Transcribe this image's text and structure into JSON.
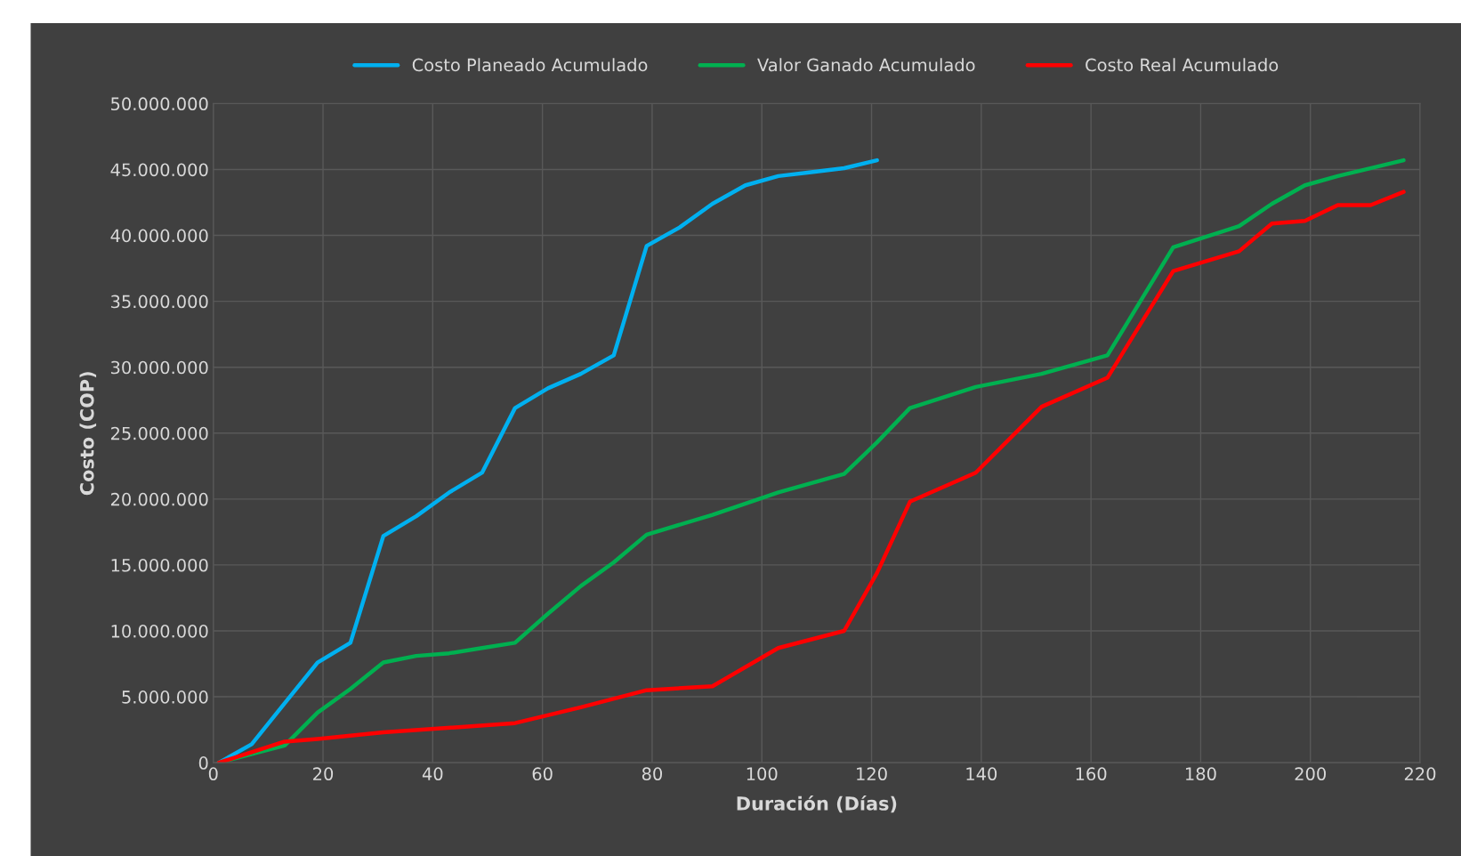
{
  "chart_data": {
    "type": "line",
    "xlabel": "Duración (Días)",
    "ylabel": "Costo (COP)",
    "xlim": [
      0,
      220
    ],
    "xticks": [
      0,
      20,
      40,
      60,
      80,
      100,
      120,
      140,
      160,
      180,
      200,
      220
    ],
    "ylim": [
      0,
      50000000
    ],
    "yticks": [
      {
        "value": 0,
        "label": "0"
      },
      {
        "value": 5000000,
        "label": "5.000.000"
      },
      {
        "value": 10000000,
        "label": "10.000.000"
      },
      {
        "value": 15000000,
        "label": "15.000.000"
      },
      {
        "value": 20000000,
        "label": "20.000.000"
      },
      {
        "value": 25000000,
        "label": "25.000.000"
      },
      {
        "value": 30000000,
        "label": "30.000.000"
      },
      {
        "value": 35000000,
        "label": "35.000.000"
      },
      {
        "value": 40000000,
        "label": "40.000.000"
      },
      {
        "value": 45000000,
        "label": "45.000.000"
      },
      {
        "value": 50000000,
        "label": "50.000.000"
      }
    ],
    "grid": true,
    "legend": "top",
    "marker": "none",
    "line_style": "solid",
    "series": [
      {
        "name": "Costo Planeado Acumulado",
        "color": "#00b0f0",
        "x": [
          1,
          7,
          13,
          19,
          25,
          31,
          37,
          43,
          49,
          55,
          61,
          67,
          73,
          79,
          85,
          91,
          97,
          103,
          109,
          115,
          121
        ],
        "values": [
          0,
          1400000,
          4500000,
          7600000,
          9100000,
          17200000,
          18700000,
          20500000,
          22000000,
          26900000,
          28400000,
          29500000,
          30900000,
          39200000,
          40600000,
          42400000,
          43800000,
          44500000,
          44800000,
          45100000,
          45700000
        ]
      },
      {
        "name": "Valor Ganado Acumulado",
        "color": "#00b050",
        "x": [
          1,
          13,
          19,
          25,
          31,
          37,
          43,
          49,
          55,
          61,
          67,
          73,
          79,
          91,
          103,
          115,
          121,
          127,
          139,
          151,
          163,
          169,
          175,
          187,
          193,
          199,
          205,
          217
        ],
        "values": [
          0,
          1300000,
          3800000,
          5600000,
          7600000,
          8100000,
          8300000,
          8700000,
          9100000,
          11300000,
          13400000,
          15200000,
          17300000,
          18800000,
          20500000,
          21900000,
          24300000,
          26900000,
          28500000,
          29500000,
          30900000,
          35000000,
          39100000,
          40700000,
          42400000,
          43800000,
          44500000,
          45700000
        ]
      },
      {
        "name": "Costo Real Acumulado",
        "color": "#ff0000",
        "x": [
          1,
          13,
          19,
          31,
          55,
          67,
          79,
          91,
          103,
          115,
          121,
          127,
          139,
          151,
          163,
          175,
          187,
          193,
          199,
          205,
          211,
          217
        ],
        "values": [
          0,
          1600000,
          1800000,
          2300000,
          3000000,
          4200000,
          5500000,
          5800000,
          8700000,
          10000000,
          14400000,
          19800000,
          22000000,
          27000000,
          29200000,
          37300000,
          38800000,
          40900000,
          41100000,
          42300000,
          42300000,
          43300000
        ]
      }
    ]
  }
}
